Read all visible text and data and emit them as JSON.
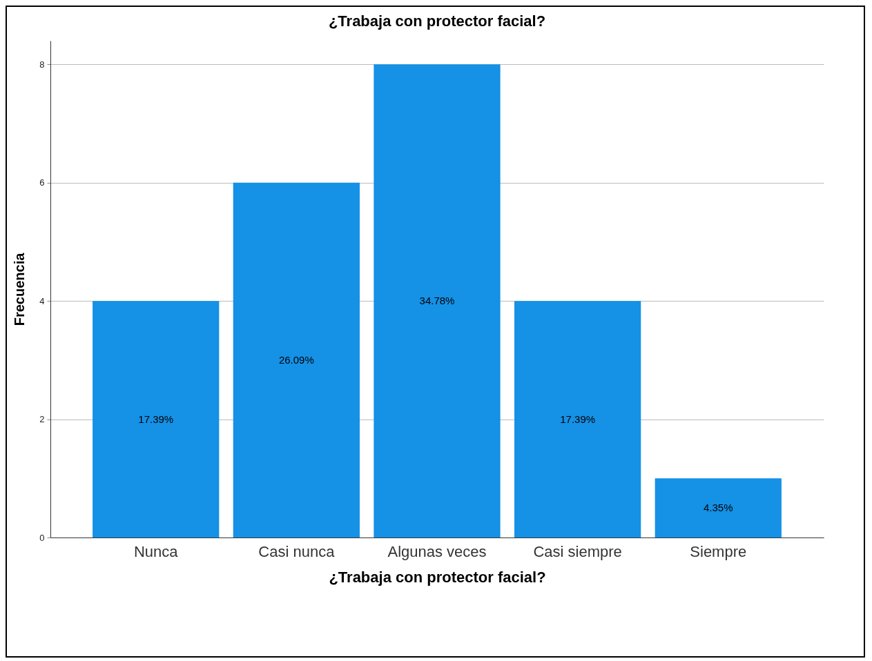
{
  "chart_data": {
    "type": "bar",
    "title": "¿Trabaja con protector facial?",
    "xlabel": "¿Trabaja con protector facial?",
    "ylabel": "Frecuencia",
    "categories": [
      "Nunca",
      "Casi nunca",
      "Algunas veces",
      "Casi siempre",
      "Siempre"
    ],
    "values": [
      4,
      6,
      8,
      4,
      1
    ],
    "annotations": [
      "17.39%",
      "26.09%",
      "34.78%",
      "17.39%",
      "4.35%"
    ],
    "color": "#1591e6",
    "ylim": [
      0,
      8.4
    ],
    "yticks": [
      0,
      2,
      4,
      6,
      8
    ],
    "grid": "y"
  }
}
